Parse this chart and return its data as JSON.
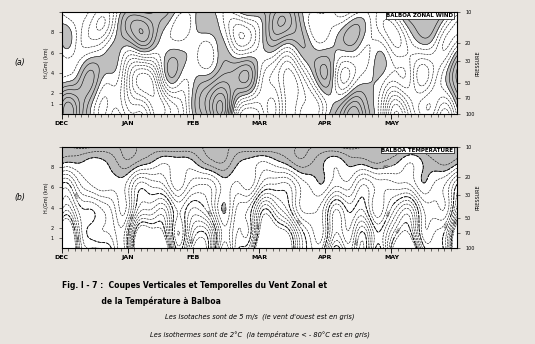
{
  "title_line1": "Fig. I - 7 :  Coupes Verticales et Temporelles du Vent Zonal et",
  "title_line2": "               de la Température à Balboa",
  "subtitle_line1": "Les Isotaches sont de 5 m/s  (le vent d'ouest est en gris)",
  "subtitle_line2": "Les isothermes sont de 2°C  (la température < - 80°C est en gris)",
  "panel_a_label": "BALBOA ZONAL WIND",
  "panel_b_label": "BALBOA TEMPERATURE",
  "label_a": "(a)",
  "label_b": "(b)",
  "x_months": [
    "DEC",
    "JAN",
    "FEB",
    "MAR",
    "APR",
    "MAY"
  ],
  "y_label": "H.(Gm) (km)",
  "pressure_label": "PRESSURE",
  "bg_color": "#e8e4df",
  "contour_color": "#111111"
}
